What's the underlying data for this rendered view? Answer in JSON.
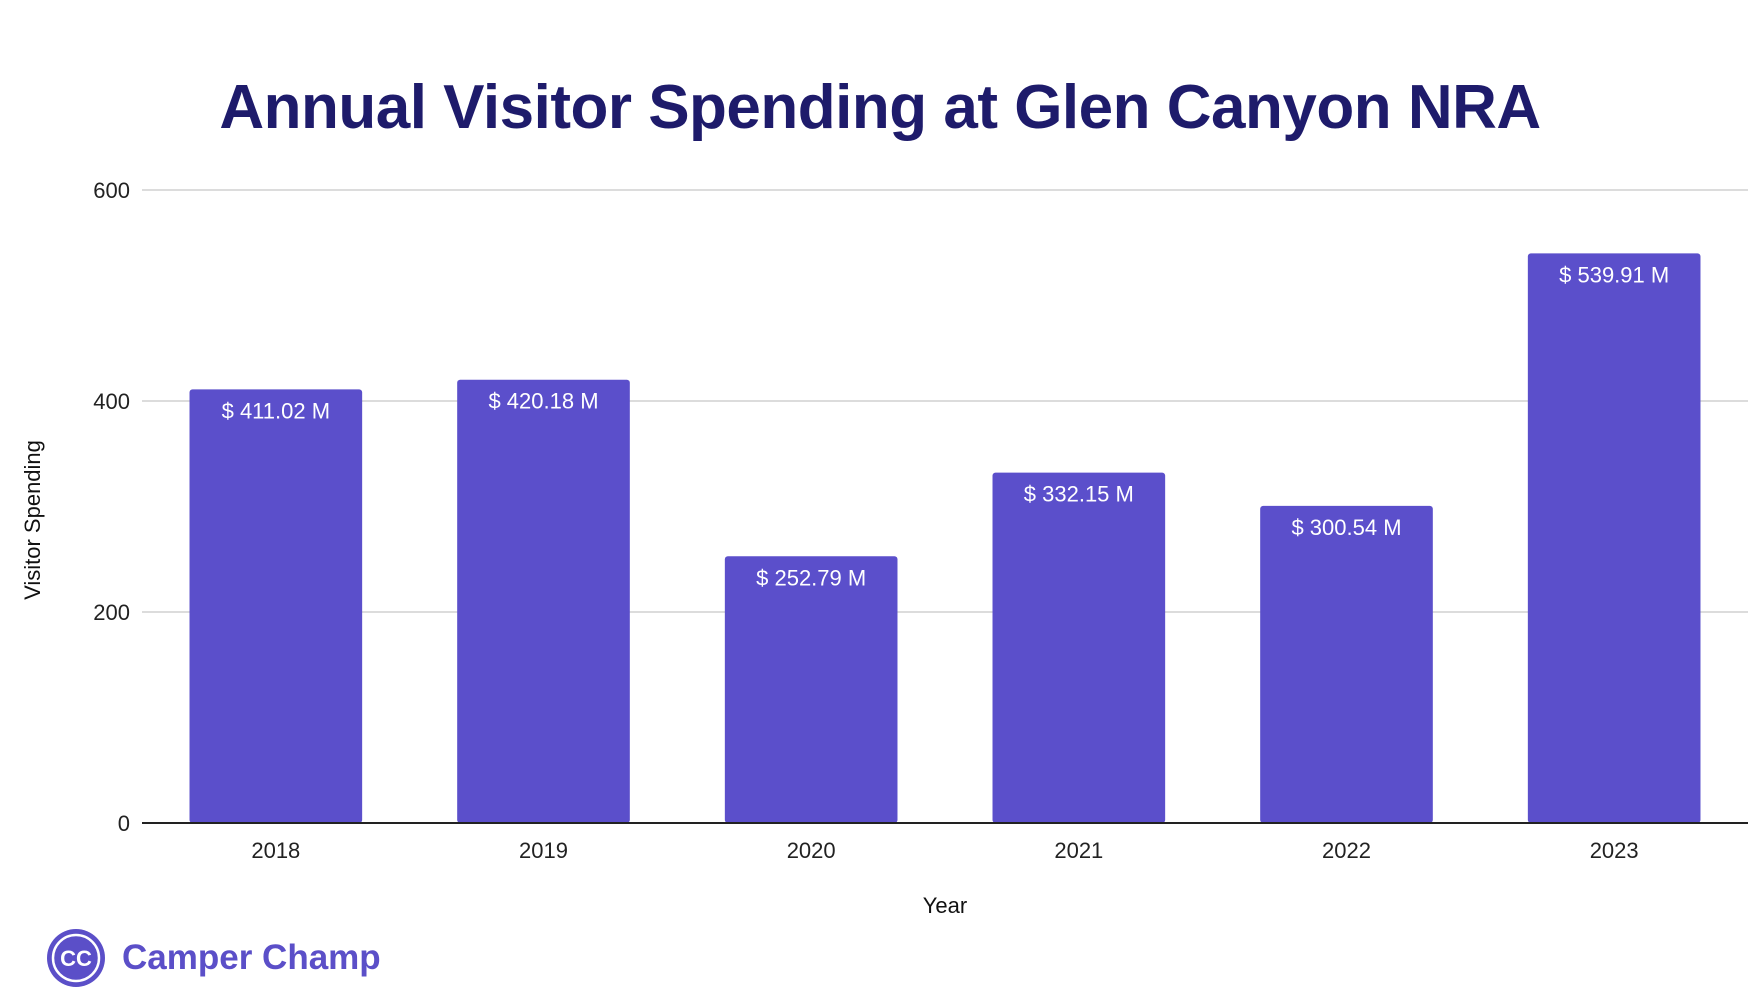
{
  "chart_data": {
    "type": "bar",
    "title": "Annual Visitor Spending at Glen Canyon NRA",
    "xlabel": "Year",
    "ylabel": "Visitor Spending",
    "categories": [
      "2018",
      "2019",
      "2020",
      "2021",
      "2022",
      "2023"
    ],
    "values": [
      411.02,
      420.18,
      252.79,
      332.15,
      300.54,
      539.91
    ],
    "data_labels": [
      "$ 411.02 M",
      "$ 420.18 M",
      "$ 252.79 M",
      "$ 332.15 M",
      "$ 300.54 M",
      "$ 539.91 M"
    ],
    "yticks": [
      "0",
      "200",
      "400",
      "600"
    ],
    "ytick_values": [
      0,
      200,
      400,
      600
    ],
    "ylim": [
      0,
      600
    ],
    "grid": true,
    "legend": "none",
    "bar_color": "#5b4fcb"
  },
  "brand": {
    "name": "Camper Champ",
    "logo_text": "CC",
    "color": "#5b4fc8"
  }
}
